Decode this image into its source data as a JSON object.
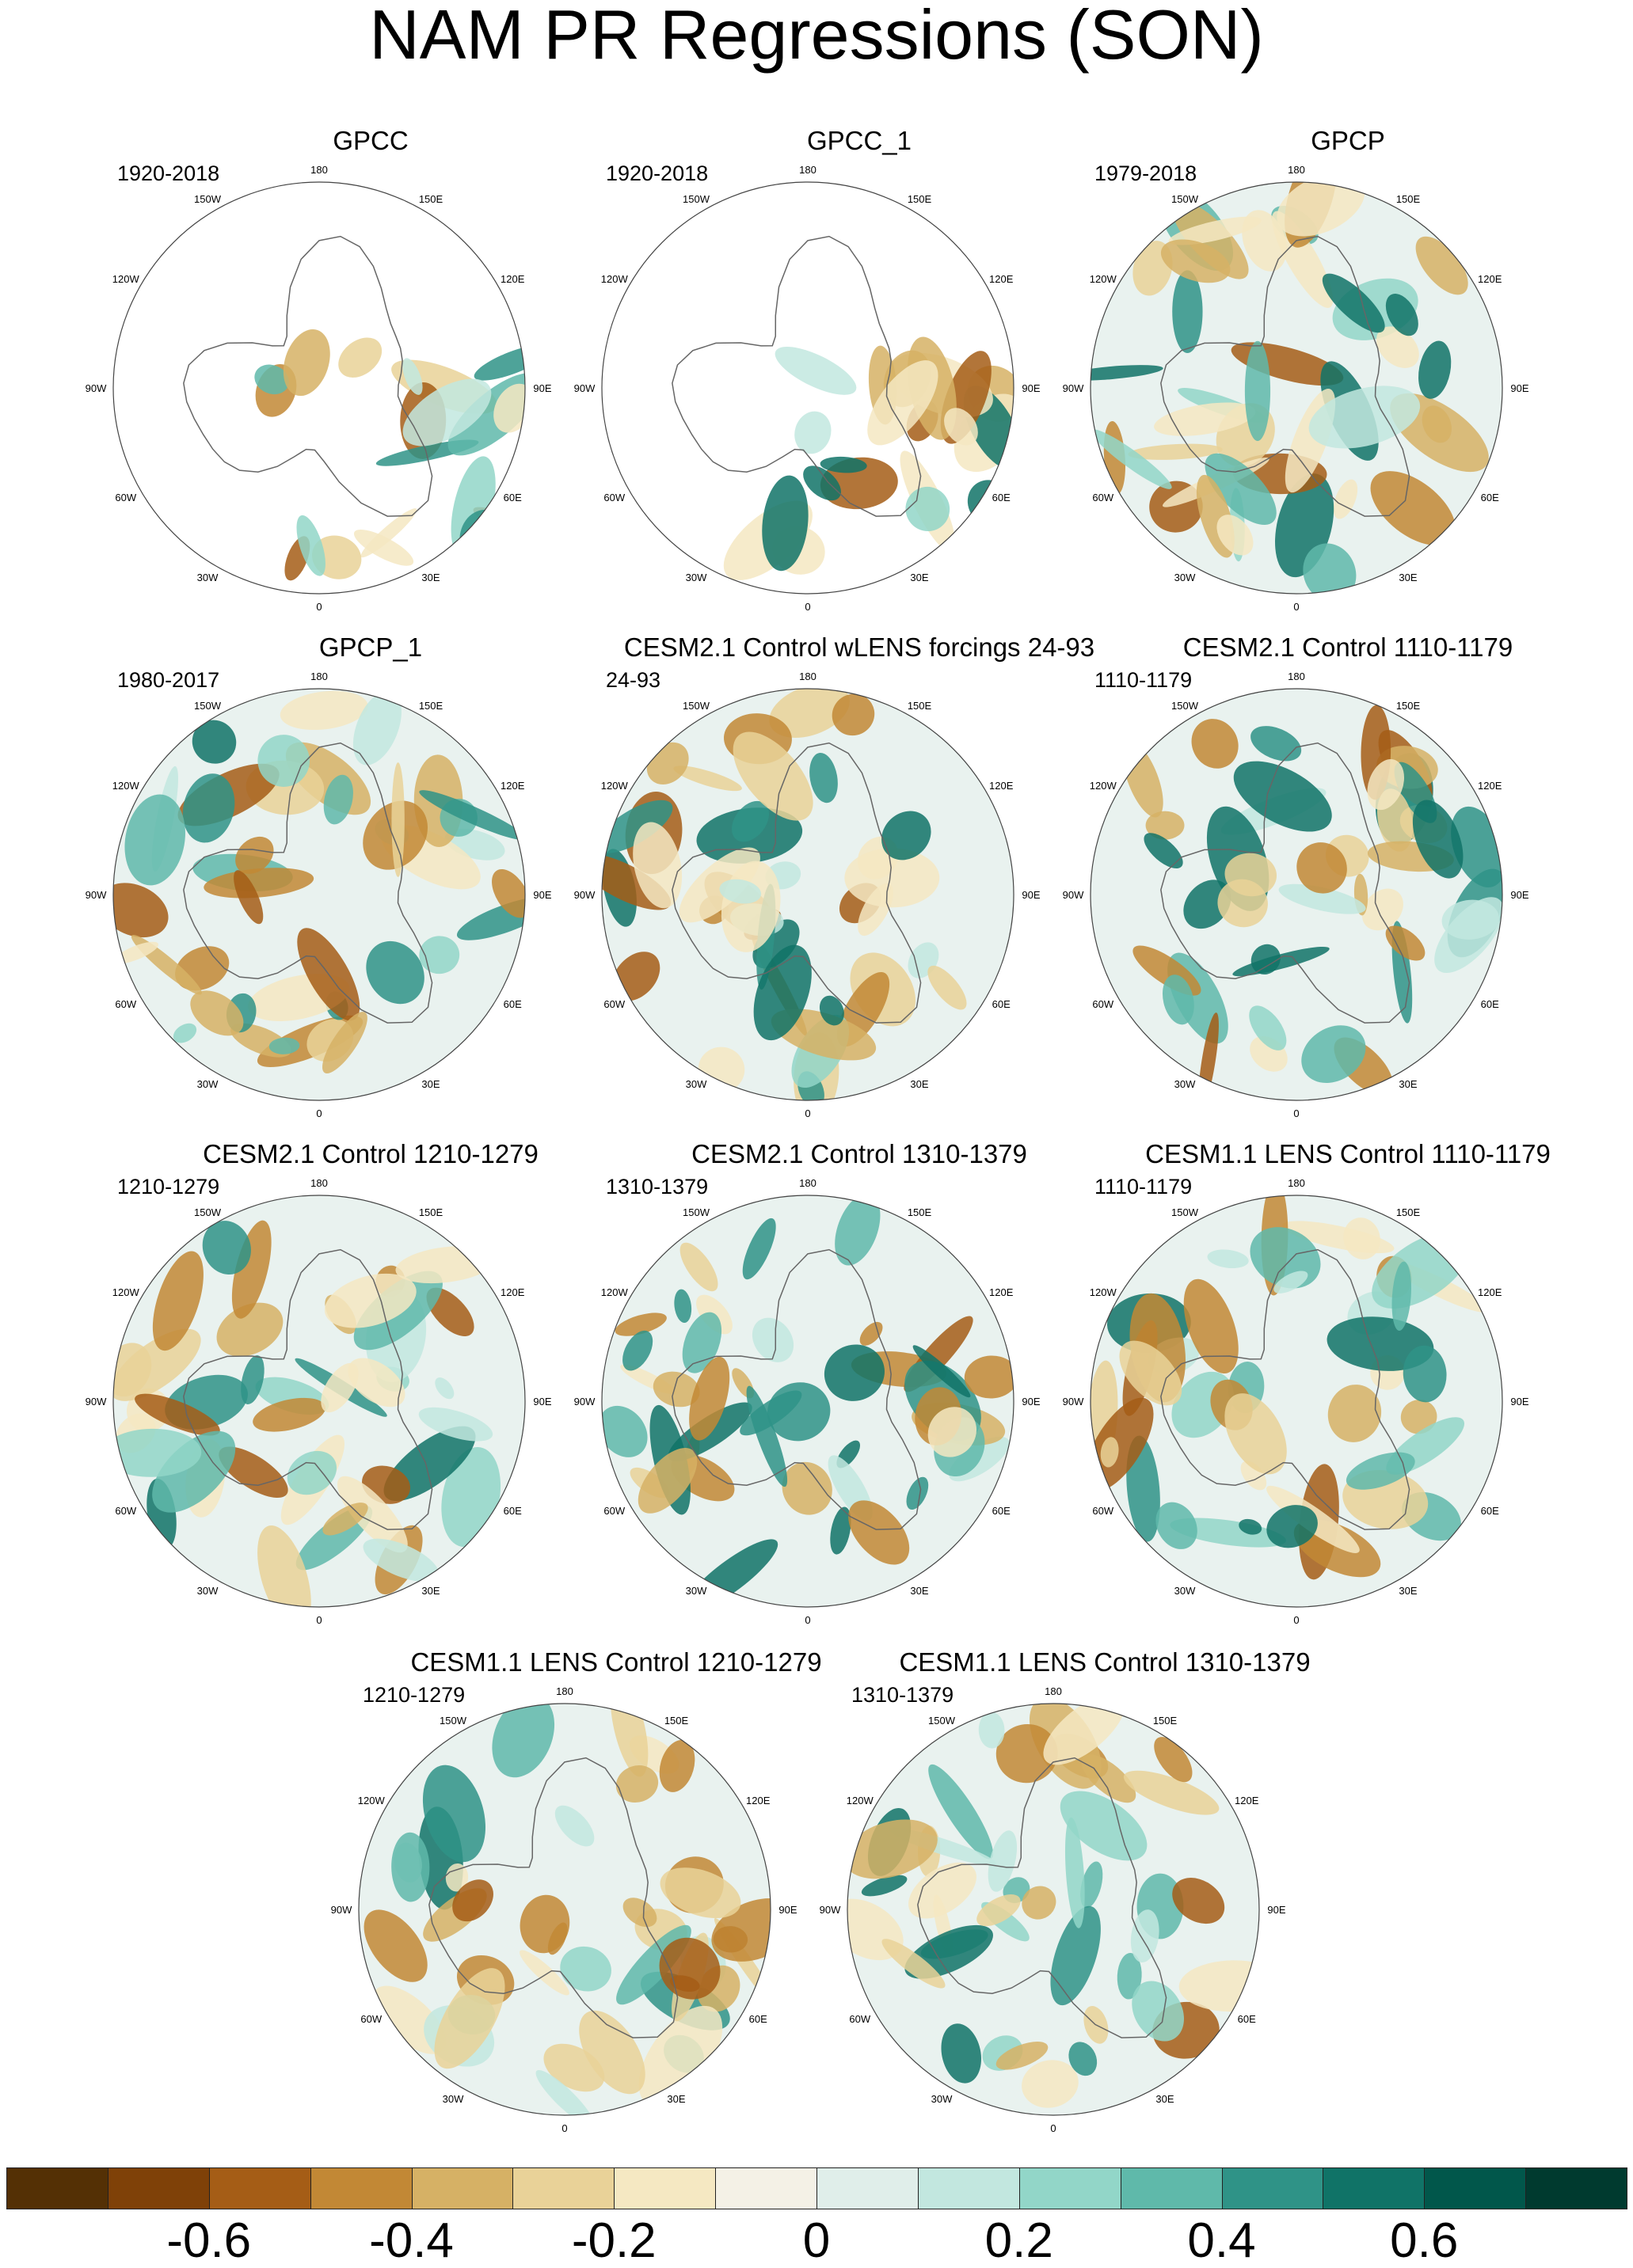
{
  "figure": {
    "title": "NAM PR Regressions (SON)",
    "colorbar": {
      "colors": [
        "#543005",
        "#7f4108",
        "#a55d16",
        "#c28835",
        "#d6b165",
        "#e9d298",
        "#f5e8c2",
        "#f4f1e6",
        "#e0eeea",
        "#c2e7df",
        "#92d6c8",
        "#5fb9aa",
        "#2f9387",
        "#107367",
        "#01574b",
        "#003a2f"
      ],
      "labels": [
        "-0.6",
        "-0.4",
        "-0.2",
        "0",
        "0.2",
        "0.4",
        "0.6"
      ]
    },
    "longitude_labels": [
      "180",
      "150E",
      "120E",
      "90E",
      "60E",
      "30E",
      "0",
      "30W",
      "60W",
      "90W",
      "120W",
      "150W"
    ],
    "panels": [
      {
        "title": "GPCC",
        "period": "1920-2018",
        "source": "obs_land"
      },
      {
        "title": "GPCC_1",
        "period": "1920-2018",
        "source": "obs_land"
      },
      {
        "title": "GPCP",
        "period": "1979-2018",
        "source": "full"
      },
      {
        "title": "GPCP_1",
        "period": "1980-2017",
        "source": "full"
      },
      {
        "title": "CESM2.1 Control wLENS forcings 24-93",
        "period": "24-93",
        "source": "full"
      },
      {
        "title": "CESM2.1 Control 1110-1179",
        "period": "1110-1179",
        "source": "full"
      },
      {
        "title": "CESM2.1 Control 1210-1279",
        "period": "1210-1279",
        "source": "full"
      },
      {
        "title": "CESM2.1 Control 1310-1379",
        "period": "1310-1379",
        "source": "full"
      },
      {
        "title": "CESM1.1 LENS Control 1110-1179",
        "period": "1110-1179",
        "source": "full"
      },
      {
        "title": "CESM1.1 LENS Control 1210-1279",
        "period": "1210-1279",
        "source": "full"
      },
      {
        "title": "CESM1.1 LENS Control 1310-1379",
        "period": "1310-1379",
        "source": "full"
      }
    ]
  }
}
